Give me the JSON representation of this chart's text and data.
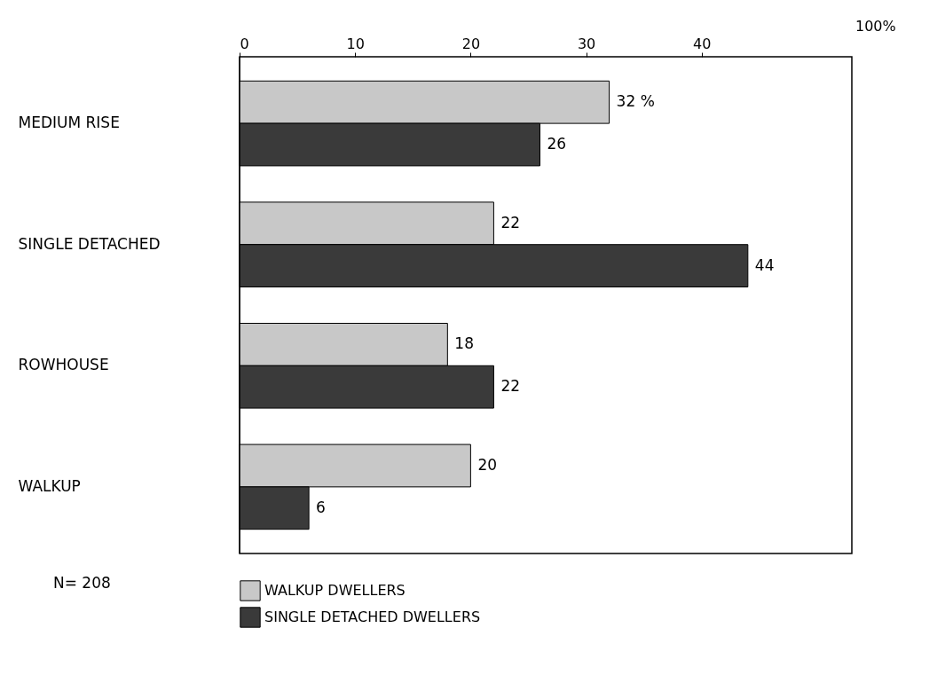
{
  "chart_data": {
    "type": "bar",
    "orientation": "horizontal",
    "categories": [
      "MEDIUM RISE",
      "SINGLE DETACHED",
      "ROWHOUSE",
      "WALKUP"
    ],
    "series": [
      {
        "name": "WALKUP DWELLERS",
        "color": "#c8c8c8",
        "values": [
          32,
          22,
          18,
          20
        ],
        "value_labels": [
          "32 %",
          "22",
          "18",
          "20"
        ]
      },
      {
        "name": "SINGLE DETACHED DWELLERS",
        "color": "#3a3a3a",
        "values": [
          26,
          44,
          22,
          6
        ],
        "value_labels": [
          "26",
          "44",
          "22",
          "6"
        ]
      }
    ],
    "xlim": [
      0,
      53
    ],
    "xticks": [
      0,
      10,
      20,
      30,
      40
    ],
    "grid": false,
    "legend": "bottom",
    "annotations": [
      "N= 208",
      "100%"
    ]
  }
}
